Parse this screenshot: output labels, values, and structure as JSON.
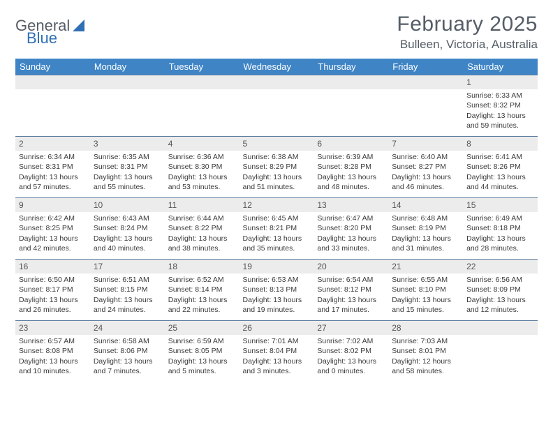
{
  "logo": {
    "text_a": "General",
    "text_b": "Blue"
  },
  "title": "February 2025",
  "location": "Bulleen, Victoria, Australia",
  "header_color": "#3f84c5",
  "border_color": "#5a7ca0",
  "stripe_color": "#ececec",
  "weekdays": [
    "Sunday",
    "Monday",
    "Tuesday",
    "Wednesday",
    "Thursday",
    "Friday",
    "Saturday"
  ],
  "labels": {
    "sunrise": "Sunrise:",
    "sunset": "Sunset:",
    "daylight": "Daylight:"
  },
  "first_weekday_index": 6,
  "days": [
    {
      "n": 1,
      "sunrise": "6:33 AM",
      "sunset": "8:32 PM",
      "daylight": "13 hours and 59 minutes."
    },
    {
      "n": 2,
      "sunrise": "6:34 AM",
      "sunset": "8:31 PM",
      "daylight": "13 hours and 57 minutes."
    },
    {
      "n": 3,
      "sunrise": "6:35 AM",
      "sunset": "8:31 PM",
      "daylight": "13 hours and 55 minutes."
    },
    {
      "n": 4,
      "sunrise": "6:36 AM",
      "sunset": "8:30 PM",
      "daylight": "13 hours and 53 minutes."
    },
    {
      "n": 5,
      "sunrise": "6:38 AM",
      "sunset": "8:29 PM",
      "daylight": "13 hours and 51 minutes."
    },
    {
      "n": 6,
      "sunrise": "6:39 AM",
      "sunset": "8:28 PM",
      "daylight": "13 hours and 48 minutes."
    },
    {
      "n": 7,
      "sunrise": "6:40 AM",
      "sunset": "8:27 PM",
      "daylight": "13 hours and 46 minutes."
    },
    {
      "n": 8,
      "sunrise": "6:41 AM",
      "sunset": "8:26 PM",
      "daylight": "13 hours and 44 minutes."
    },
    {
      "n": 9,
      "sunrise": "6:42 AM",
      "sunset": "8:25 PM",
      "daylight": "13 hours and 42 minutes."
    },
    {
      "n": 10,
      "sunrise": "6:43 AM",
      "sunset": "8:24 PM",
      "daylight": "13 hours and 40 minutes."
    },
    {
      "n": 11,
      "sunrise": "6:44 AM",
      "sunset": "8:22 PM",
      "daylight": "13 hours and 38 minutes."
    },
    {
      "n": 12,
      "sunrise": "6:45 AM",
      "sunset": "8:21 PM",
      "daylight": "13 hours and 35 minutes."
    },
    {
      "n": 13,
      "sunrise": "6:47 AM",
      "sunset": "8:20 PM",
      "daylight": "13 hours and 33 minutes."
    },
    {
      "n": 14,
      "sunrise": "6:48 AM",
      "sunset": "8:19 PM",
      "daylight": "13 hours and 31 minutes."
    },
    {
      "n": 15,
      "sunrise": "6:49 AM",
      "sunset": "8:18 PM",
      "daylight": "13 hours and 28 minutes."
    },
    {
      "n": 16,
      "sunrise": "6:50 AM",
      "sunset": "8:17 PM",
      "daylight": "13 hours and 26 minutes."
    },
    {
      "n": 17,
      "sunrise": "6:51 AM",
      "sunset": "8:15 PM",
      "daylight": "13 hours and 24 minutes."
    },
    {
      "n": 18,
      "sunrise": "6:52 AM",
      "sunset": "8:14 PM",
      "daylight": "13 hours and 22 minutes."
    },
    {
      "n": 19,
      "sunrise": "6:53 AM",
      "sunset": "8:13 PM",
      "daylight": "13 hours and 19 minutes."
    },
    {
      "n": 20,
      "sunrise": "6:54 AM",
      "sunset": "8:12 PM",
      "daylight": "13 hours and 17 minutes."
    },
    {
      "n": 21,
      "sunrise": "6:55 AM",
      "sunset": "8:10 PM",
      "daylight": "13 hours and 15 minutes."
    },
    {
      "n": 22,
      "sunrise": "6:56 AM",
      "sunset": "8:09 PM",
      "daylight": "13 hours and 12 minutes."
    },
    {
      "n": 23,
      "sunrise": "6:57 AM",
      "sunset": "8:08 PM",
      "daylight": "13 hours and 10 minutes."
    },
    {
      "n": 24,
      "sunrise": "6:58 AM",
      "sunset": "8:06 PM",
      "daylight": "13 hours and 7 minutes."
    },
    {
      "n": 25,
      "sunrise": "6:59 AM",
      "sunset": "8:05 PM",
      "daylight": "13 hours and 5 minutes."
    },
    {
      "n": 26,
      "sunrise": "7:01 AM",
      "sunset": "8:04 PM",
      "daylight": "13 hours and 3 minutes."
    },
    {
      "n": 27,
      "sunrise": "7:02 AM",
      "sunset": "8:02 PM",
      "daylight": "13 hours and 0 minutes."
    },
    {
      "n": 28,
      "sunrise": "7:03 AM",
      "sunset": "8:01 PM",
      "daylight": "12 hours and 58 minutes."
    }
  ]
}
